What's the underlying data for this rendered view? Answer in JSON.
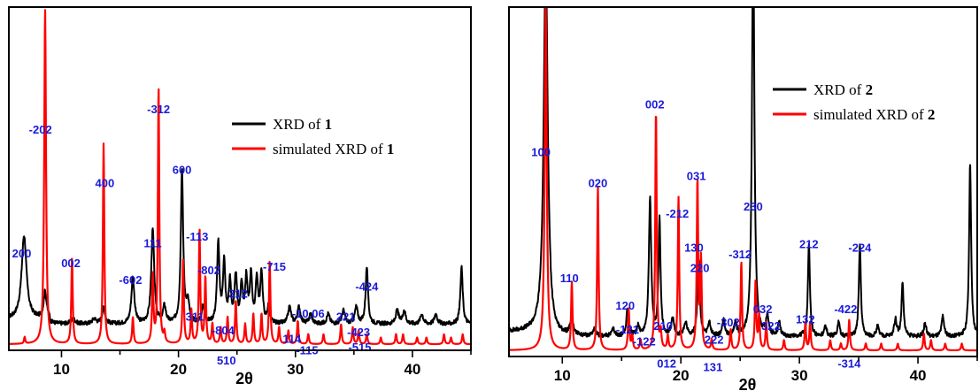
{
  "colors": {
    "experimental": "#000000",
    "simulated": "#ff0000",
    "label": "#1a1adc",
    "axis": "#000000"
  },
  "chart_data": [
    {
      "type": "line",
      "xlabel": "2θ",
      "ylabel": "",
      "xlim": [
        5.5,
        45
      ],
      "ylim": [
        0,
        100
      ],
      "xticks": [
        10,
        20,
        30,
        40
      ],
      "grid": false,
      "legend_position": "top-right",
      "series": [
        {
          "name": "XRD of 1",
          "prefix": "XRD of ",
          "compound": "1",
          "kind": "experimental",
          "baseline": 7,
          "peaks": [
            {
              "x": 6.8,
              "h": 25,
              "w": 0.25
            },
            {
              "x": 8.6,
              "h": 8,
              "w": 0.15
            },
            {
              "x": 11.0,
              "h": 1.5,
              "w": 0.2
            },
            {
              "x": 12.8,
              "h": 1.5,
              "w": 0.2
            },
            {
              "x": 13.6,
              "h": 5,
              "w": 0.15
            },
            {
              "x": 16.1,
              "h": 14,
              "w": 0.15
            },
            {
              "x": 17.8,
              "h": 28,
              "w": 0.15
            },
            {
              "x": 18.8,
              "h": 5,
              "w": 0.15
            },
            {
              "x": 20.3,
              "h": 46,
              "w": 0.12
            },
            {
              "x": 20.8,
              "h": 6,
              "w": 0.15
            },
            {
              "x": 22.1,
              "h": 5,
              "w": 0.15
            },
            {
              "x": 23.4,
              "h": 24,
              "w": 0.12
            },
            {
              "x": 23.9,
              "h": 18,
              "w": 0.12
            },
            {
              "x": 24.4,
              "h": 12,
              "w": 0.12
            },
            {
              "x": 24.9,
              "h": 14,
              "w": 0.12
            },
            {
              "x": 25.4,
              "h": 11,
              "w": 0.12
            },
            {
              "x": 25.8,
              "h": 13,
              "w": 0.12
            },
            {
              "x": 26.2,
              "h": 14,
              "w": 0.12
            },
            {
              "x": 26.7,
              "h": 13,
              "w": 0.12
            },
            {
              "x": 27.1,
              "h": 15,
              "w": 0.12
            },
            {
              "x": 27.7,
              "h": 5,
              "w": 0.12
            },
            {
              "x": 29.5,
              "h": 5,
              "w": 0.15
            },
            {
              "x": 30.3,
              "h": 5,
              "w": 0.15
            },
            {
              "x": 31.3,
              "h": 3,
              "w": 0.15
            },
            {
              "x": 32.8,
              "h": 3,
              "w": 0.15
            },
            {
              "x": 34.1,
              "h": 4,
              "w": 0.15
            },
            {
              "x": 35.2,
              "h": 5,
              "w": 0.15
            },
            {
              "x": 36.1,
              "h": 17,
              "w": 0.12
            },
            {
              "x": 38.7,
              "h": 4,
              "w": 0.15
            },
            {
              "x": 39.3,
              "h": 4,
              "w": 0.15
            },
            {
              "x": 40.8,
              "h": 3,
              "w": 0.15
            },
            {
              "x": 42.0,
              "h": 3,
              "w": 0.15
            },
            {
              "x": 44.2,
              "h": 17,
              "w": 0.12
            }
          ]
        },
        {
          "name": "simulated XRD of 1",
          "prefix": "simulated XRD of ",
          "compound": "1",
          "kind": "simulated",
          "baseline": 1,
          "peaks": [
            {
              "x": 6.85,
              "h": 2,
              "w": 0.06
            },
            {
              "x": 8.6,
              "h": 100,
              "w": 0.09
            },
            {
              "x": 10.9,
              "h": 26,
              "w": 0.07
            },
            {
              "x": 13.6,
              "h": 60,
              "w": 0.07
            },
            {
              "x": 16.1,
              "h": 8,
              "w": 0.07
            },
            {
              "x": 17.8,
              "h": 20,
              "w": 0.07
            },
            {
              "x": 18.3,
              "h": 77,
              "w": 0.07
            },
            {
              "x": 18.8,
              "h": 3,
              "w": 0.07
            },
            {
              "x": 20.4,
              "h": 25,
              "w": 0.07
            },
            {
              "x": 21.1,
              "h": 10,
              "w": 0.07
            },
            {
              "x": 21.8,
              "h": 34,
              "w": 0.07
            },
            {
              "x": 22.3,
              "h": 20,
              "w": 0.07
            },
            {
              "x": 22.9,
              "h": 6,
              "w": 0.07
            },
            {
              "x": 23.6,
              "h": 5,
              "w": 0.07
            },
            {
              "x": 24.2,
              "h": 8,
              "w": 0.07
            },
            {
              "x": 24.9,
              "h": 13,
              "w": 0.07
            },
            {
              "x": 25.7,
              "h": 6,
              "w": 0.07
            },
            {
              "x": 26.4,
              "h": 9,
              "w": 0.07
            },
            {
              "x": 27.1,
              "h": 9,
              "w": 0.07
            },
            {
              "x": 27.8,
              "h": 25,
              "w": 0.07
            },
            {
              "x": 28.6,
              "h": 5,
              "w": 0.07
            },
            {
              "x": 29.4,
              "h": 4,
              "w": 0.07
            },
            {
              "x": 30.2,
              "h": 7,
              "w": 0.07
            },
            {
              "x": 31.1,
              "h": 3,
              "w": 0.07
            },
            {
              "x": 32.4,
              "h": 3,
              "w": 0.07
            },
            {
              "x": 33.9,
              "h": 6,
              "w": 0.07
            },
            {
              "x": 34.9,
              "h": 5,
              "w": 0.07
            },
            {
              "x": 35.4,
              "h": 4,
              "w": 0.07
            },
            {
              "x": 36.1,
              "h": 3,
              "w": 0.07
            },
            {
              "x": 37.3,
              "h": 2,
              "w": 0.07
            },
            {
              "x": 38.6,
              "h": 3,
              "w": 0.07
            },
            {
              "x": 39.2,
              "h": 3,
              "w": 0.07
            },
            {
              "x": 40.4,
              "h": 2,
              "w": 0.07
            },
            {
              "x": 41.2,
              "h": 2,
              "w": 0.07
            },
            {
              "x": 42.7,
              "h": 3,
              "w": 0.07
            },
            {
              "x": 43.3,
              "h": 2,
              "w": 0.07
            },
            {
              "x": 44.3,
              "h": 3,
              "w": 0.07
            }
          ]
        }
      ],
      "peak_labels": [
        {
          "text": "200",
          "x": 6.6,
          "y": 27
        },
        {
          "text": "-202",
          "x": 8.2,
          "y": 64
        },
        {
          "text": "002",
          "x": 10.8,
          "y": 24
        },
        {
          "text": "400",
          "x": 13.7,
          "y": 48
        },
        {
          "text": "-602",
          "x": 15.9,
          "y": 19
        },
        {
          "text": "111",
          "x": 17.8,
          "y": 30
        },
        {
          "text": "-312",
          "x": 18.3,
          "y": 70
        },
        {
          "text": "600",
          "x": 20.3,
          "y": 52
        },
        {
          "text": "-113",
          "x": 21.6,
          "y": 32
        },
        {
          "text": "-802",
          "x": 22.6,
          "y": 22
        },
        {
          "text": "311",
          "x": 21.4,
          "y": 8
        },
        {
          "text": "-804",
          "x": 23.8,
          "y": 4
        },
        {
          "text": "312",
          "x": 25.1,
          "y": 15
        },
        {
          "text": "510",
          "x": 24.1,
          "y": -5
        },
        {
          "text": "-715",
          "x": 28.2,
          "y": 23
        },
        {
          "text": "-10,06",
          "x": 31.1,
          "y": 9
        },
        {
          "text": "114",
          "x": 29.7,
          "y": 1.5
        },
        {
          "text": "-115",
          "x": 31.0,
          "y": -2
        },
        {
          "text": "-424",
          "x": 36.1,
          "y": 17
        },
        {
          "text": "221",
          "x": 34.3,
          "y": 8
        },
        {
          "text": "-423",
          "x": 35.4,
          "y": 3.5
        },
        {
          "text": "-515",
          "x": 35.5,
          "y": -1
        }
      ]
    },
    {
      "type": "line",
      "xlabel": "2θ",
      "ylabel": "",
      "xlim": [
        5.5,
        45
      ],
      "ylim": [
        0,
        100
      ],
      "xticks": [
        10,
        20,
        30,
        40
      ],
      "grid": false,
      "legend_position": "top-right",
      "series": [
        {
          "name": "XRD of 2",
          "prefix": "XRD of ",
          "compound": "2",
          "kind": "experimental",
          "baseline": 5,
          "peaks": [
            {
              "x": 8.6,
              "h": 110,
              "w": 0.2
            },
            {
              "x": 10.8,
              "h": 5,
              "w": 0.15
            },
            {
              "x": 12.7,
              "h": 2,
              "w": 0.15
            },
            {
              "x": 14.3,
              "h": 2,
              "w": 0.15
            },
            {
              "x": 15.5,
              "h": 8,
              "w": 0.12
            },
            {
              "x": 16.4,
              "h": 3,
              "w": 0.12
            },
            {
              "x": 17.4,
              "h": 40,
              "w": 0.12
            },
            {
              "x": 18.2,
              "h": 34,
              "w": 0.1
            },
            {
              "x": 19.3,
              "h": 5,
              "w": 0.15
            },
            {
              "x": 20.4,
              "h": 4,
              "w": 0.15
            },
            {
              "x": 21.5,
              "h": 22,
              "w": 0.12
            },
            {
              "x": 22.4,
              "h": 4,
              "w": 0.12
            },
            {
              "x": 23.6,
              "h": 5,
              "w": 0.12
            },
            {
              "x": 24.6,
              "h": 4,
              "w": 0.12
            },
            {
              "x": 26.1,
              "h": 120,
              "w": 0.12
            },
            {
              "x": 27.3,
              "h": 6,
              "w": 0.12
            },
            {
              "x": 28.3,
              "h": 4,
              "w": 0.12
            },
            {
              "x": 30.8,
              "h": 27,
              "w": 0.1
            },
            {
              "x": 32.2,
              "h": 3,
              "w": 0.12
            },
            {
              "x": 33.3,
              "h": 4,
              "w": 0.12
            },
            {
              "x": 35.1,
              "h": 27,
              "w": 0.1
            },
            {
              "x": 36.6,
              "h": 3,
              "w": 0.12
            },
            {
              "x": 38.1,
              "h": 5,
              "w": 0.12
            },
            {
              "x": 38.7,
              "h": 16,
              "w": 0.1
            },
            {
              "x": 40.6,
              "h": 4,
              "w": 0.12
            },
            {
              "x": 42.1,
              "h": 6,
              "w": 0.12
            },
            {
              "x": 44.4,
              "h": 51,
              "w": 0.1
            }
          ]
        },
        {
          "name": "simulated XRD of 2",
          "prefix": "simulated XRD of ",
          "compound": "2",
          "kind": "simulated",
          "baseline": 1,
          "peaks": [
            {
              "x": 8.6,
              "h": 102,
              "w": 0.1
            },
            {
              "x": 10.8,
              "h": 20,
              "w": 0.07
            },
            {
              "x": 13.0,
              "h": 48,
              "w": 0.07
            },
            {
              "x": 15.6,
              "h": 12,
              "w": 0.07
            },
            {
              "x": 15.9,
              "h": 4,
              "w": 0.07
            },
            {
              "x": 16.6,
              "h": 3,
              "w": 0.07
            },
            {
              "x": 17.9,
              "h": 71,
              "w": 0.07
            },
            {
              "x": 18.3,
              "h": 5,
              "w": 0.07
            },
            {
              "x": 18.9,
              "h": 4,
              "w": 0.07
            },
            {
              "x": 19.8,
              "h": 45,
              "w": 0.07
            },
            {
              "x": 21.4,
              "h": 50,
              "w": 0.07
            },
            {
              "x": 21.7,
              "h": 26,
              "w": 0.07
            },
            {
              "x": 22.6,
              "h": 3,
              "w": 0.07
            },
            {
              "x": 24.2,
              "h": 6,
              "w": 0.07
            },
            {
              "x": 25.1,
              "h": 26,
              "w": 0.07
            },
            {
              "x": 26.3,
              "h": 20,
              "w": 0.07
            },
            {
              "x": 26.6,
              "h": 10,
              "w": 0.07
            },
            {
              "x": 27.2,
              "h": 8,
              "w": 0.07
            },
            {
              "x": 28.7,
              "h": 3,
              "w": 0.07
            },
            {
              "x": 30.5,
              "h": 8,
              "w": 0.07
            },
            {
              "x": 30.9,
              "h": 8,
              "w": 0.07
            },
            {
              "x": 32.6,
              "h": 3,
              "w": 0.07
            },
            {
              "x": 33.5,
              "h": 2,
              "w": 0.07
            },
            {
              "x": 34.2,
              "h": 9,
              "w": 0.07
            },
            {
              "x": 35.6,
              "h": 2,
              "w": 0.07
            },
            {
              "x": 36.9,
              "h": 2,
              "w": 0.07
            },
            {
              "x": 38.3,
              "h": 2,
              "w": 0.07
            },
            {
              "x": 40.5,
              "h": 5,
              "w": 0.07
            },
            {
              "x": 41.1,
              "h": 3,
              "w": 0.07
            },
            {
              "x": 42.3,
              "h": 2,
              "w": 0.07
            },
            {
              "x": 43.7,
              "h": 2,
              "w": 0.07
            }
          ]
        }
      ],
      "peak_labels": [
        {
          "text": "100",
          "x": 8.2,
          "y": 58
        },
        {
          "text": "110",
          "x": 10.6,
          "y": 21
        },
        {
          "text": "020",
          "x": 13.0,
          "y": 49
        },
        {
          "text": "120",
          "x": 15.3,
          "y": 13
        },
        {
          "text": "-121",
          "x": 15.5,
          "y": 6
        },
        {
          "text": "-122",
          "x": 16.9,
          "y": 2.5
        },
        {
          "text": "002",
          "x": 17.8,
          "y": 72
        },
        {
          "text": "210",
          "x": 18.5,
          "y": 7
        },
        {
          "text": "012",
          "x": 18.8,
          "y": -4
        },
        {
          "text": "-212",
          "x": 19.7,
          "y": 40
        },
        {
          "text": "031",
          "x": 21.3,
          "y": 51
        },
        {
          "text": "130",
          "x": 21.1,
          "y": 30
        },
        {
          "text": "220",
          "x": 21.6,
          "y": 24
        },
        {
          "text": "222",
          "x": 22.8,
          "y": 3
        },
        {
          "text": "131",
          "x": 22.7,
          "y": -5
        },
        {
          "text": "-302",
          "x": 24.0,
          "y": 8
        },
        {
          "text": "230",
          "x": 26.1,
          "y": 42
        },
        {
          "text": "-312",
          "x": 25.0,
          "y": 28
        },
        {
          "text": "032",
          "x": 26.9,
          "y": 12
        },
        {
          "text": "322",
          "x": 27.6,
          "y": 7
        },
        {
          "text": "132",
          "x": 30.5,
          "y": 9
        },
        {
          "text": "212",
          "x": 30.8,
          "y": 31
        },
        {
          "text": "-224",
          "x": 35.1,
          "y": 30
        },
        {
          "text": "-422",
          "x": 33.9,
          "y": 12
        },
        {
          "text": "-314",
          "x": 34.2,
          "y": -4
        }
      ]
    }
  ]
}
